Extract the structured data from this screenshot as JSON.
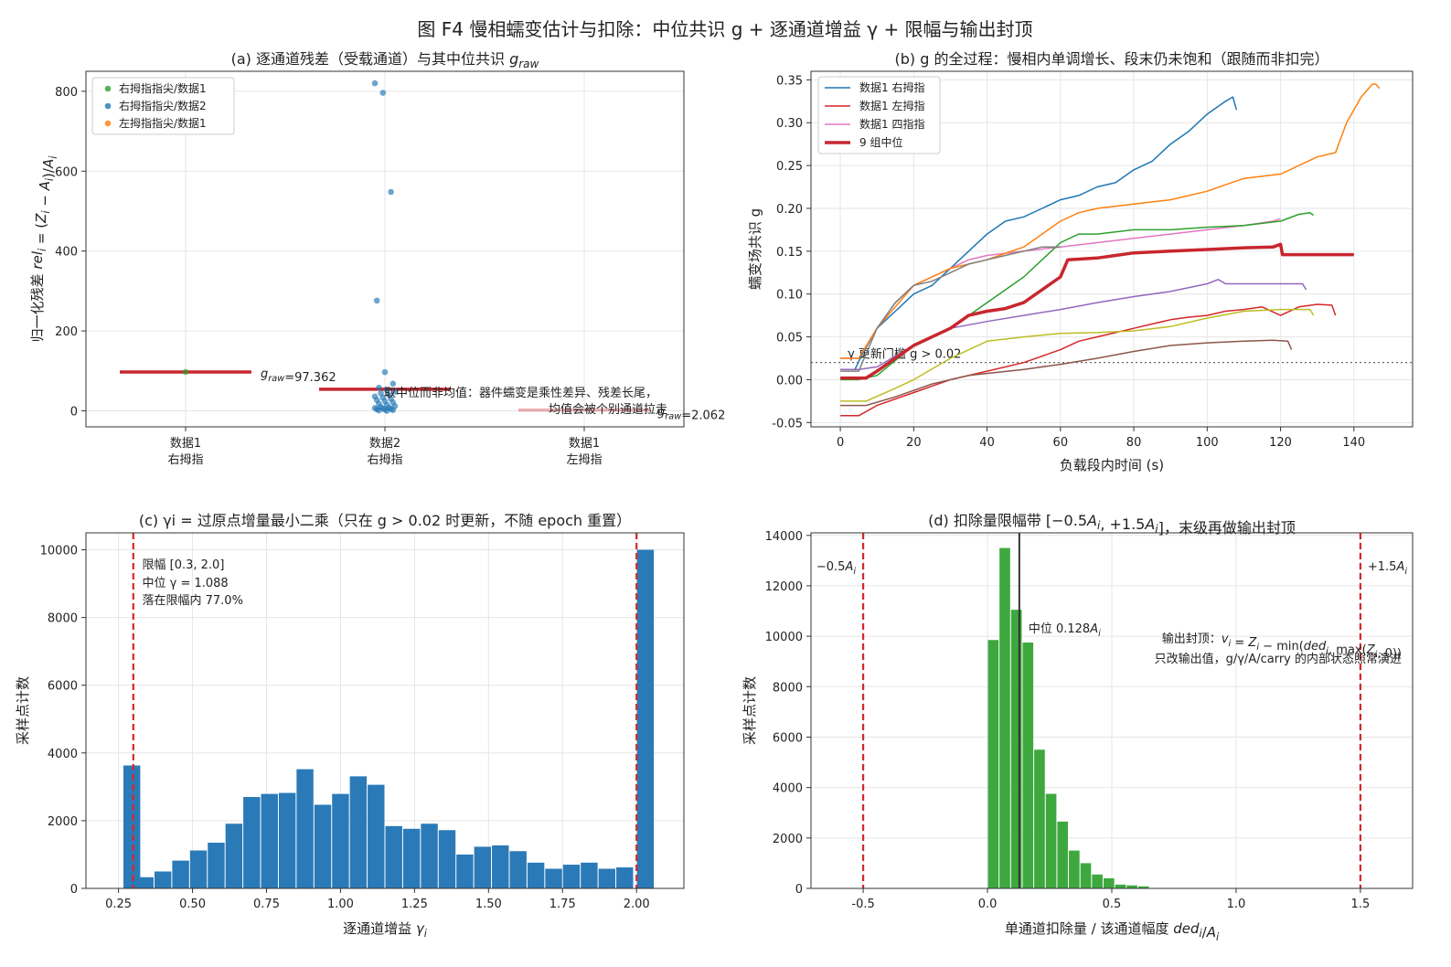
{
  "figure_title": "图 F4  慢相蠕变估计与扣除：中位共识 g + 逐通道增益 γ + 限幅与输出封顶",
  "chart_data": [
    {
      "id": "a",
      "type": "scatter",
      "title": "(a) 逐通道残差（受载通道）与其中位共识 g_raw",
      "ylabel": "归一化残差 rel_i = (Z_i − A_i)/A_i",
      "categories": [
        "数据1\n右拇指",
        "数据2\n右拇指",
        "数据1\n左拇指"
      ],
      "ylim": [
        -40,
        850
      ],
      "yticks": [
        0,
        200,
        400,
        600,
        800
      ],
      "grid": true,
      "legend": {
        "placement": "top-left",
        "entries": [
          {
            "name": "右拇指指尖/数据1",
            "color": "#2ca02c"
          },
          {
            "name": "右拇指指尖/数据2",
            "color": "#1f77b4"
          },
          {
            "name": "左拇指指尖/数据1",
            "color": "#ff7f0e"
          }
        ]
      },
      "series": [
        {
          "name": "右拇指指尖/数据1",
          "category": 0,
          "color": "#2ca02c",
          "values": [
            97.4
          ]
        },
        {
          "name": "右拇指指尖/数据2",
          "category": 1,
          "color": "#1f77b4",
          "values": [
            820,
            796,
            548,
            276,
            97,
            68,
            58,
            52,
            48,
            44,
            40,
            36,
            33,
            30,
            27,
            24,
            21,
            18,
            15,
            12,
            10,
            8,
            7,
            6,
            5,
            4,
            3,
            2,
            1,
            0
          ]
        },
        {
          "name": "左拇指指尖/数据1",
          "category": 2,
          "color": "#ff7f0e",
          "values": []
        }
      ],
      "medians": [
        {
          "category": 0,
          "value": 97.362,
          "label": "g_raw=97.362"
        },
        {
          "category": 1,
          "value": 54,
          "label": ""
        },
        {
          "category": 2,
          "value": 2.062,
          "label": "g_raw=2.062"
        }
      ],
      "annotation": [
        "取中位而非均值：器件蠕变是乘性差异、残差长尾，",
        "均值会被个别通道拉走"
      ]
    },
    {
      "id": "b",
      "type": "line",
      "title": "(b) g 的全过程：慢相内单调增长、段末仍未饱和（跟随而非扣完）",
      "xlabel": "负载段内时间 (s)",
      "ylabel": "蠕变场共识 g",
      "xlim": [
        -8,
        156
      ],
      "ylim": [
        -0.055,
        0.36
      ],
      "xticks": [
        0,
        20,
        40,
        60,
        80,
        100,
        120,
        140
      ],
      "yticks": [
        -0.05,
        0.0,
        0.05,
        0.1,
        0.15,
        0.2,
        0.25,
        0.3,
        0.35
      ],
      "grid": true,
      "legend": {
        "placement": "top-left"
      },
      "threshold": {
        "value": 0.02,
        "label": "γ 更新门槛 g > 0.02"
      },
      "series": [
        {
          "name": "数据1 右拇指",
          "color": "#1f77b4",
          "width": 1.5,
          "points": [
            [
              0,
              0.012
            ],
            [
              4,
              0.012
            ],
            [
              6,
              0.03
            ],
            [
              10,
              0.06
            ],
            [
              15,
              0.08
            ],
            [
              20,
              0.1
            ],
            [
              25,
              0.11
            ],
            [
              30,
              0.13
            ],
            [
              35,
              0.15
            ],
            [
              40,
              0.17
            ],
            [
              45,
              0.185
            ],
            [
              50,
              0.19
            ],
            [
              55,
              0.2
            ],
            [
              60,
              0.21
            ],
            [
              65,
              0.215
            ],
            [
              70,
              0.225
            ],
            [
              75,
              0.23
            ],
            [
              80,
              0.245
            ],
            [
              85,
              0.255
            ],
            [
              90,
              0.275
            ],
            [
              95,
              0.29
            ],
            [
              100,
              0.31
            ],
            [
              105,
              0.325
            ],
            [
              107,
              0.33
            ],
            [
              108,
              0.315
            ]
          ]
        },
        {
          "name": "数据1 左拇指",
          "color": "#d62728",
          "width": 1.5,
          "points": [
            [
              0,
              -0.042
            ],
            [
              5,
              -0.042
            ],
            [
              10,
              -0.03
            ],
            [
              20,
              -0.015
            ],
            [
              30,
              0.0
            ],
            [
              40,
              0.01
            ],
            [
              50,
              0.02
            ],
            [
              60,
              0.035
            ],
            [
              65,
              0.045
            ],
            [
              70,
              0.05
            ],
            [
              75,
              0.055
            ],
            [
              80,
              0.06
            ],
            [
              85,
              0.065
            ],
            [
              90,
              0.07
            ],
            [
              95,
              0.073
            ],
            [
              100,
              0.075
            ],
            [
              105,
              0.08
            ],
            [
              110,
              0.082
            ],
            [
              115,
              0.085
            ],
            [
              120,
              0.075
            ],
            [
              125,
              0.085
            ],
            [
              130,
              0.088
            ],
            [
              134,
              0.087
            ],
            [
              135,
              0.075
            ]
          ]
        },
        {
          "name": "数据1 四指指",
          "color": "#e377c2",
          "width": 1.5,
          "points": [
            [
              0,
              0.025
            ],
            [
              5,
              0.025
            ],
            [
              10,
              0.06
            ],
            [
              15,
              0.09
            ],
            [
              20,
              0.11
            ],
            [
              25,
              0.12
            ],
            [
              30,
              0.13
            ],
            [
              35,
              0.14
            ],
            [
              40,
              0.145
            ],
            [
              50,
              0.15
            ],
            [
              60,
              0.155
            ],
            [
              70,
              0.16
            ],
            [
              80,
              0.165
            ],
            [
              90,
              0.17
            ],
            [
              100,
              0.175
            ],
            [
              110,
              0.18
            ],
            [
              118,
              0.185
            ],
            [
              120,
              0.188
            ]
          ]
        },
        {
          "name": "",
          "color": "#ff7f0e",
          "width": 1.5,
          "points": [
            [
              0,
              0.025
            ],
            [
              5,
              0.025
            ],
            [
              10,
              0.06
            ],
            [
              20,
              0.11
            ],
            [
              30,
              0.13
            ],
            [
              40,
              0.14
            ],
            [
              50,
              0.155
            ],
            [
              55,
              0.17
            ],
            [
              60,
              0.185
            ],
            [
              65,
              0.195
            ],
            [
              70,
              0.2
            ],
            [
              80,
              0.205
            ],
            [
              90,
              0.21
            ],
            [
              100,
              0.22
            ],
            [
              110,
              0.235
            ],
            [
              120,
              0.24
            ],
            [
              130,
              0.26
            ],
            [
              135,
              0.265
            ],
            [
              138,
              0.3
            ],
            [
              142,
              0.33
            ],
            [
              145,
              0.345
            ],
            [
              146,
              0.345
            ],
            [
              147,
              0.34
            ]
          ]
        },
        {
          "name": "",
          "color": "#2ca02c",
          "width": 1.5,
          "points": [
            [
              0,
              0.0
            ],
            [
              5,
              0.0
            ],
            [
              10,
              0.005
            ],
            [
              20,
              0.04
            ],
            [
              30,
              0.06
            ],
            [
              40,
              0.09
            ],
            [
              50,
              0.12
            ],
            [
              55,
              0.14
            ],
            [
              60,
              0.16
            ],
            [
              65,
              0.17
            ],
            [
              70,
              0.17
            ],
            [
              80,
              0.175
            ],
            [
              90,
              0.175
            ],
            [
              100,
              0.178
            ],
            [
              110,
              0.18
            ],
            [
              120,
              0.185
            ],
            [
              125,
              0.193
            ],
            [
              128,
              0.195
            ],
            [
              129,
              0.192
            ]
          ]
        },
        {
          "name": "",
          "color": "#8c564b",
          "width": 1.5,
          "points": [
            [
              0,
              -0.03
            ],
            [
              7,
              -0.03
            ],
            [
              15,
              -0.02
            ],
            [
              25,
              -0.005
            ],
            [
              35,
              0.005
            ],
            [
              50,
              0.012
            ],
            [
              60,
              0.018
            ],
            [
              70,
              0.025
            ],
            [
              80,
              0.033
            ],
            [
              90,
              0.04
            ],
            [
              100,
              0.043
            ],
            [
              110,
              0.045
            ],
            [
              118,
              0.046
            ],
            [
              122,
              0.045
            ],
            [
              123,
              0.035
            ]
          ]
        },
        {
          "name": "",
          "color": "#9467bd",
          "width": 1.5,
          "points": [
            [
              0,
              0.012
            ],
            [
              5,
              0.012
            ],
            [
              10,
              0.015
            ],
            [
              20,
              0.04
            ],
            [
              30,
              0.06
            ],
            [
              40,
              0.068
            ],
            [
              50,
              0.075
            ],
            [
              60,
              0.082
            ],
            [
              70,
              0.09
            ],
            [
              80,
              0.097
            ],
            [
              90,
              0.103
            ],
            [
              100,
              0.112
            ],
            [
              103,
              0.117
            ],
            [
              105,
              0.112
            ],
            [
              110,
              0.112
            ],
            [
              120,
              0.112
            ],
            [
              126,
              0.112
            ],
            [
              127,
              0.105
            ]
          ]
        },
        {
          "name": "",
          "color": "#bcbd22",
          "width": 1.5,
          "points": [
            [
              0,
              -0.025
            ],
            [
              7,
              -0.025
            ],
            [
              15,
              -0.01
            ],
            [
              20,
              0.0
            ],
            [
              30,
              0.025
            ],
            [
              40,
              0.045
            ],
            [
              50,
              0.05
            ],
            [
              60,
              0.054
            ],
            [
              70,
              0.055
            ],
            [
              80,
              0.057
            ],
            [
              90,
              0.062
            ],
            [
              100,
              0.072
            ],
            [
              110,
              0.08
            ],
            [
              120,
              0.082
            ],
            [
              128,
              0.082
            ],
            [
              129,
              0.075
            ]
          ]
        },
        {
          "name": "",
          "color": "#7f7f7f",
          "width": 1.5,
          "points": [
            [
              0,
              0.01
            ],
            [
              5,
              0.01
            ],
            [
              10,
              0.06
            ],
            [
              15,
              0.09
            ],
            [
              20,
              0.11
            ],
            [
              25,
              0.115
            ],
            [
              30,
              0.125
            ],
            [
              35,
              0.135
            ],
            [
              40,
              0.14
            ],
            [
              45,
              0.145
            ],
            [
              50,
              0.15
            ],
            [
              55,
              0.155
            ],
            [
              60,
              0.155
            ]
          ]
        },
        {
          "name": "9 组中位",
          "color": "#c8262e",
          "width": 3.5,
          "points": [
            [
              0,
              0.002
            ],
            [
              7,
              0.002
            ],
            [
              10,
              0.01
            ],
            [
              15,
              0.025
            ],
            [
              20,
              0.04
            ],
            [
              25,
              0.05
            ],
            [
              30,
              0.06
            ],
            [
              35,
              0.075
            ],
            [
              40,
              0.08
            ],
            [
              45,
              0.083
            ],
            [
              50,
              0.09
            ],
            [
              55,
              0.105
            ],
            [
              60,
              0.12
            ],
            [
              62,
              0.14
            ],
            [
              70,
              0.142
            ],
            [
              75,
              0.145
            ],
            [
              80,
              0.148
            ],
            [
              85,
              0.149
            ],
            [
              90,
              0.15
            ],
            [
              100,
              0.152
            ],
            [
              110,
              0.154
            ],
            [
              118,
              0.155
            ],
            [
              120,
              0.158
            ],
            [
              120.5,
              0.146
            ],
            [
              140,
              0.146
            ]
          ]
        }
      ]
    },
    {
      "id": "c",
      "type": "bar",
      "title": "(c) γi = 过原点增量最小二乘（只在 g > 0.02 时更新，不随 epoch 重置）",
      "xlabel": "逐通道增益 γi",
      "ylabel": "采样点计数",
      "xlim": [
        0.14,
        2.16
      ],
      "ylim": [
        0,
        10500
      ],
      "xticks": [
        0.25,
        0.5,
        0.75,
        1.0,
        1.25,
        1.5,
        1.75,
        2.0
      ],
      "yticks": [
        0,
        2000,
        4000,
        6000,
        8000,
        10000
      ],
      "bin_start": 0.25,
      "bin_width": 0.06,
      "color": "#2a7ab8",
      "values": [
        3630,
        330,
        500,
        820,
        1120,
        1350,
        1910,
        2700,
        2790,
        2820,
        3520,
        2470,
        2790,
        3310,
        3060,
        1840,
        1760,
        1910,
        1720,
        1000,
        1230,
        1270,
        1100,
        760,
        580,
        700,
        760,
        580,
        620,
        10000
      ],
      "limits": [
        0.3,
        2.0
      ],
      "annotation": {
        "limit_label": "限幅 [0.3, 2.0]",
        "median_label": "中位 γ = 1.088",
        "inside_label": "落在限幅内 77.0%"
      }
    },
    {
      "id": "d",
      "type": "bar",
      "title": "(d) 扣除量限幅带 [−0.5Ai, +1.5Ai]，末级再做输出封顶",
      "xlabel": "单通道扣除量 / 该通道幅度  ded_i/A_i",
      "ylabel": "采样点计数",
      "xlim": [
        -0.71,
        1.71
      ],
      "ylim": [
        0,
        14100
      ],
      "xticks": [
        -0.5,
        0.0,
        0.5,
        1.0,
        1.5
      ],
      "yticks": [
        0,
        2000,
        4000,
        6000,
        8000,
        10000,
        12000,
        14000
      ],
      "bin_start": 0.0,
      "bin_width": 0.0465,
      "color": "#3ea83e",
      "values": [
        9850,
        13500,
        11050,
        9750,
        5500,
        3750,
        2650,
        1500,
        1000,
        550,
        400,
        150,
        120,
        80
      ],
      "median": {
        "value": 0.128,
        "label": "中位 0.128A_i"
      },
      "limits": [
        {
          "value": -0.5,
          "label": "−0.5A_i"
        },
        {
          "value": 1.5,
          "label": "+1.5A_i"
        }
      ],
      "annotation": [
        "输出封顶：v_i = Z_i − min(ded_i, max(Z_i, 0))",
        "只改输出值，g/γ/A/carry 的内部状态照常演进"
      ]
    }
  ]
}
